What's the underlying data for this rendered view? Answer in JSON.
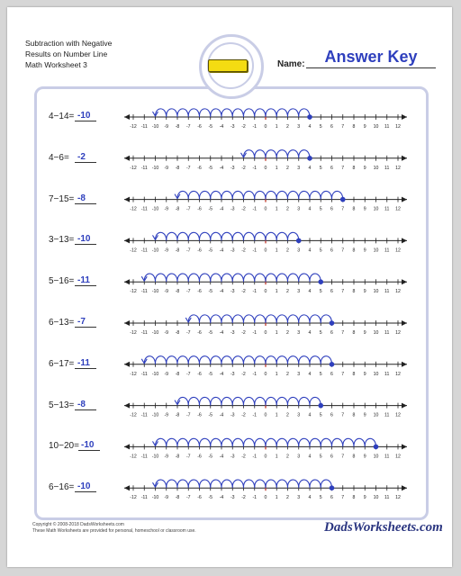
{
  "header": {
    "title_lines": [
      "Subtraction with Negative",
      "Results on Number Line",
      "Math Worksheet 3"
    ],
    "name_label": "Name:",
    "answer_key": "Answer Key"
  },
  "problems": [
    {
      "equation": "4−14=",
      "answer": "-10",
      "start": 4,
      "end": -10
    },
    {
      "equation": "4−6=",
      "answer": "-2",
      "start": 4,
      "end": -2
    },
    {
      "equation": "7−15=",
      "answer": "-8",
      "start": 7,
      "end": -8
    },
    {
      "equation": "3−13=",
      "answer": "-10",
      "start": 3,
      "end": -10
    },
    {
      "equation": "5−16=",
      "answer": "-11",
      "start": 5,
      "end": -11
    },
    {
      "equation": "6−13=",
      "answer": "-7",
      "start": 6,
      "end": -7
    },
    {
      "equation": "6−17=",
      "answer": "-11",
      "start": 6,
      "end": -11
    },
    {
      "equation": "5−13=",
      "answer": "-8",
      "start": 5,
      "end": -8
    },
    {
      "equation": "10−20=",
      "answer": "-10",
      "start": 10,
      "end": -10
    },
    {
      "equation": "6−16=",
      "answer": "-10",
      "start": 6,
      "end": -10
    }
  ],
  "number_line": {
    "min": -12,
    "max": 12
  },
  "colors": {
    "accent": "#2e3fbd",
    "axis": "#222222",
    "zero_tick": "#c0392b"
  },
  "footer": {
    "copyright": "Copyright © 2008-2018 DadsWorksheets.com",
    "note": "These Math Worksheets are provided for personal, homeschool or classroom use."
  },
  "logo": {
    "text": "DadsWorksheets.com"
  }
}
